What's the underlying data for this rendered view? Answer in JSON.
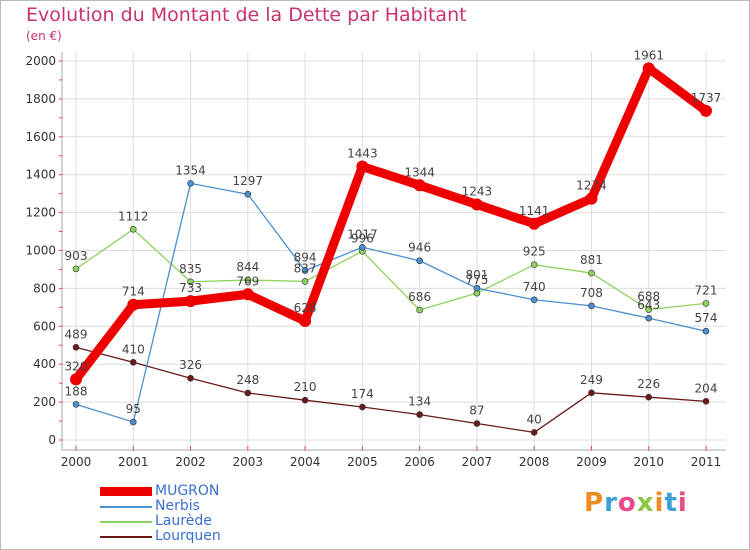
{
  "title": "Evolution du Montant de la Dette par Habitant",
  "subtitle": "(en €)",
  "brand": {
    "text": "Proxiti",
    "colors": [
      "#f08a24",
      "#3aa0d8",
      "#e84a8a",
      "#8dc63f",
      "#f08a24",
      "#3aa0d8",
      "#e84a8a"
    ]
  },
  "chart_data": {
    "type": "line",
    "categories": [
      "2000",
      "2001",
      "2002",
      "2003",
      "2004",
      "2005",
      "2006",
      "2007",
      "2008",
      "2009",
      "2010",
      "2011"
    ],
    "ylim": [
      0,
      2000
    ],
    "yticks": [
      "0",
      "200",
      "400",
      "600",
      "800",
      "1000",
      "1200",
      "1400",
      "1600",
      "1800",
      "2000"
    ],
    "grid": true,
    "legend_position": "bottom-left",
    "series": [
      {
        "name": "Lourquen",
        "color": "#6b1a1a",
        "values": [
          489,
          410,
          326,
          248,
          210,
          174,
          134,
          87,
          40,
          249,
          226,
          204
        ],
        "labels": [
          "489",
          "410",
          "326",
          "248",
          "210",
          "174",
          "134",
          "87",
          "40",
          "249",
          "226",
          "204"
        ]
      },
      {
        "name": "Laurède",
        "color": "#8dd35f",
        "values": [
          903,
          1112,
          835,
          844,
          837,
          996,
          686,
          775,
          925,
          881,
          688,
          721
        ],
        "labels": [
          "903",
          "1112",
          "835",
          "844",
          "837",
          "996",
          "686",
          "775",
          "925",
          "881",
          "688",
          "721"
        ]
      },
      {
        "name": "Nerbis",
        "color": "#4a8fcf",
        "values": [
          188,
          95,
          1354,
          1297,
          894,
          1017,
          946,
          801,
          740,
          708,
          643,
          574
        ],
        "labels": [
          "188",
          "95",
          "1354",
          "1297",
          "894",
          "1017",
          "946",
          "801",
          "740",
          "708",
          "643",
          "574"
        ]
      },
      {
        "name": "MUGRON",
        "color": "#ee0000",
        "values": [
          320,
          714,
          733,
          769,
          628,
          1443,
          1344,
          1243,
          1141,
          1274,
          1961,
          1737
        ],
        "labels": [
          "320",
          "714",
          "733",
          "769",
          "628",
          "1443",
          "1344",
          "1243",
          "1141",
          "1274",
          "1961",
          "1737"
        ]
      }
    ]
  }
}
